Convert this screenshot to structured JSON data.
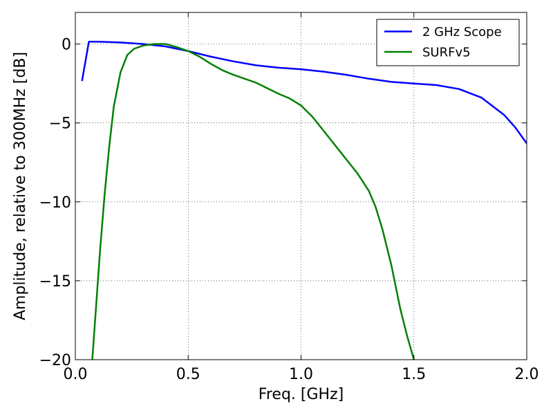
{
  "chart_data": {
    "type": "line",
    "title": "",
    "xlabel": "Freq. [GHz]",
    "ylabel": "Amplitude, relative to 300MHz [dB]",
    "xlim": [
      0.0,
      2.0
    ],
    "ylim": [
      -20,
      2
    ],
    "xticks": [
      0.0,
      0.5,
      1.0,
      1.5,
      2.0
    ],
    "xtick_labels": [
      "0.0",
      "0.5",
      "1.0",
      "1.5",
      "2.0"
    ],
    "yticks": [
      -20,
      -15,
      -10,
      -5,
      0
    ],
    "ytick_labels": [
      "−20",
      "−15",
      "−10",
      "−5",
      "0"
    ],
    "grid": true,
    "legend_position": "top-right",
    "series": [
      {
        "name": "2 GHz Scope",
        "color": "#0000ff",
        "x": [
          0.03,
          0.06,
          0.1,
          0.2,
          0.3,
          0.4,
          0.5,
          0.6,
          0.7,
          0.8,
          0.9,
          1.0,
          1.1,
          1.2,
          1.3,
          1.4,
          1.5,
          1.6,
          1.7,
          1.8,
          1.9,
          1.95,
          2.0
        ],
        "y": [
          -2.3,
          0.15,
          0.15,
          0.1,
          0.0,
          -0.15,
          -0.45,
          -0.8,
          -1.1,
          -1.35,
          -1.5,
          -1.6,
          -1.75,
          -1.95,
          -2.2,
          -2.4,
          -2.5,
          -2.6,
          -2.85,
          -3.4,
          -4.5,
          -5.3,
          -6.3
        ]
      },
      {
        "name": "SURFv5",
        "color": "#008000",
        "x": [
          0.075,
          0.09,
          0.11,
          0.13,
          0.15,
          0.17,
          0.2,
          0.23,
          0.26,
          0.3,
          0.35,
          0.4,
          0.45,
          0.5,
          0.55,
          0.6,
          0.65,
          0.7,
          0.75,
          0.8,
          0.85,
          0.9,
          0.95,
          1.0,
          1.05,
          1.1,
          1.15,
          1.2,
          1.25,
          1.3,
          1.33,
          1.36,
          1.4,
          1.44,
          1.47,
          1.5
        ],
        "y": [
          -20.0,
          -17.0,
          -13.0,
          -9.5,
          -6.5,
          -4.0,
          -1.8,
          -0.7,
          -0.3,
          -0.1,
          0.0,
          0.0,
          -0.2,
          -0.45,
          -0.8,
          -1.25,
          -1.65,
          -1.95,
          -2.2,
          -2.45,
          -2.8,
          -3.15,
          -3.45,
          -3.9,
          -4.6,
          -5.5,
          -6.4,
          -7.3,
          -8.2,
          -9.3,
          -10.3,
          -11.7,
          -14.0,
          -16.8,
          -18.5,
          -20.0
        ]
      }
    ]
  }
}
